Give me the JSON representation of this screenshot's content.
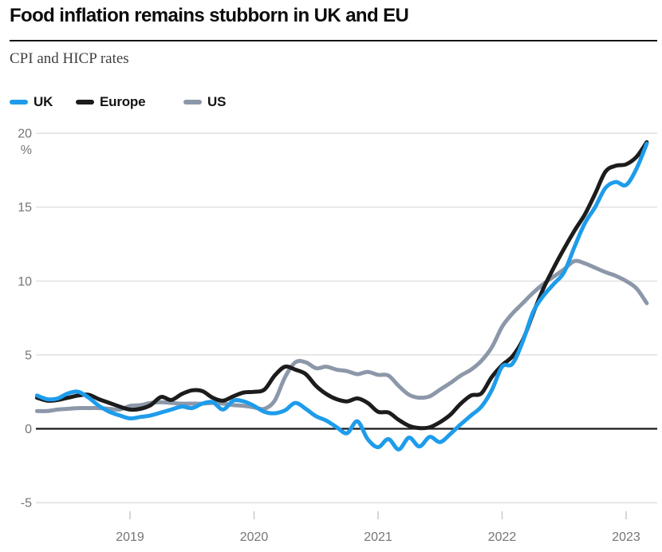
{
  "header": {
    "title": "Food inflation remains stubborn in UK and EU",
    "subtitle": "CPI and HICP rates"
  },
  "legend": [
    {
      "label": "UK",
      "color": "#1e9ceb"
    },
    {
      "label": "Europe",
      "color": "#1c1c1c"
    },
    {
      "label": "US",
      "color": "#8c98a9"
    }
  ],
  "chart_data": {
    "type": "line",
    "title": "Food inflation remains stubborn in UK and EU",
    "subtitle": "CPI and HICP rates",
    "unit_label": "%",
    "y_ticks": [
      20,
      15,
      10,
      5,
      0,
      -5
    ],
    "ylim": [
      -5,
      20
    ],
    "x_tick_labels": [
      "2019",
      "2020",
      "2021",
      "2022",
      "2023"
    ],
    "x_start_month": "2018-04",
    "x_end_month": "2023-03",
    "grid": "horizontal-only",
    "legend_position": "top-left",
    "series": [
      {
        "name": "US",
        "color": "#8c98a9",
        "values": [
          1.2,
          1.2,
          1.3,
          1.35,
          1.4,
          1.4,
          1.4,
          1.35,
          1.3,
          1.55,
          1.6,
          1.75,
          1.8,
          1.75,
          1.7,
          1.7,
          1.7,
          1.75,
          1.7,
          1.6,
          1.55,
          1.45,
          1.35,
          1.9,
          3.5,
          4.5,
          4.5,
          4.1,
          4.2,
          4.0,
          3.9,
          3.7,
          3.85,
          3.65,
          3.6,
          2.9,
          2.3,
          2.1,
          2.2,
          2.65,
          3.1,
          3.6,
          4.0,
          4.6,
          5.5,
          6.9,
          7.8,
          8.5,
          9.2,
          9.8,
          10.3,
          10.8,
          11.35,
          11.2,
          10.9,
          10.6,
          10.35,
          10.0,
          9.5,
          8.5
        ]
      },
      {
        "name": "Europe",
        "color": "#1c1c1c",
        "values": [
          2.1,
          1.9,
          1.95,
          2.1,
          2.25,
          2.3,
          2.0,
          1.75,
          1.5,
          1.3,
          1.35,
          1.6,
          2.15,
          1.95,
          2.35,
          2.6,
          2.55,
          2.1,
          1.9,
          2.2,
          2.45,
          2.5,
          2.65,
          3.6,
          4.2,
          4.0,
          3.7,
          2.9,
          2.35,
          2.0,
          1.85,
          2.05,
          1.75,
          1.15,
          1.1,
          0.6,
          0.2,
          0.05,
          0.1,
          0.45,
          0.95,
          1.7,
          2.25,
          2.4,
          3.5,
          4.3,
          4.9,
          6.0,
          7.8,
          9.5,
          10.9,
          12.2,
          13.4,
          14.5,
          15.9,
          17.4,
          17.8,
          17.9,
          18.4,
          19.4
        ]
      },
      {
        "name": "UK",
        "color": "#1e9ceb",
        "values": [
          2.25,
          2.0,
          2.05,
          2.4,
          2.5,
          2.1,
          1.55,
          1.15,
          0.9,
          0.7,
          0.8,
          0.9,
          1.1,
          1.3,
          1.5,
          1.4,
          1.7,
          1.8,
          1.3,
          1.9,
          1.85,
          1.55,
          1.15,
          1.05,
          1.25,
          1.75,
          1.35,
          0.85,
          0.55,
          0.1,
          -0.3,
          0.5,
          -0.7,
          -1.25,
          -0.7,
          -1.4,
          -0.6,
          -1.2,
          -0.55,
          -0.9,
          -0.35,
          0.3,
          0.9,
          1.5,
          2.6,
          4.2,
          4.4,
          5.9,
          7.9,
          9.0,
          9.8,
          10.6,
          12.3,
          13.9,
          15.0,
          16.3,
          16.7,
          16.5,
          17.6,
          19.3
        ]
      }
    ]
  }
}
